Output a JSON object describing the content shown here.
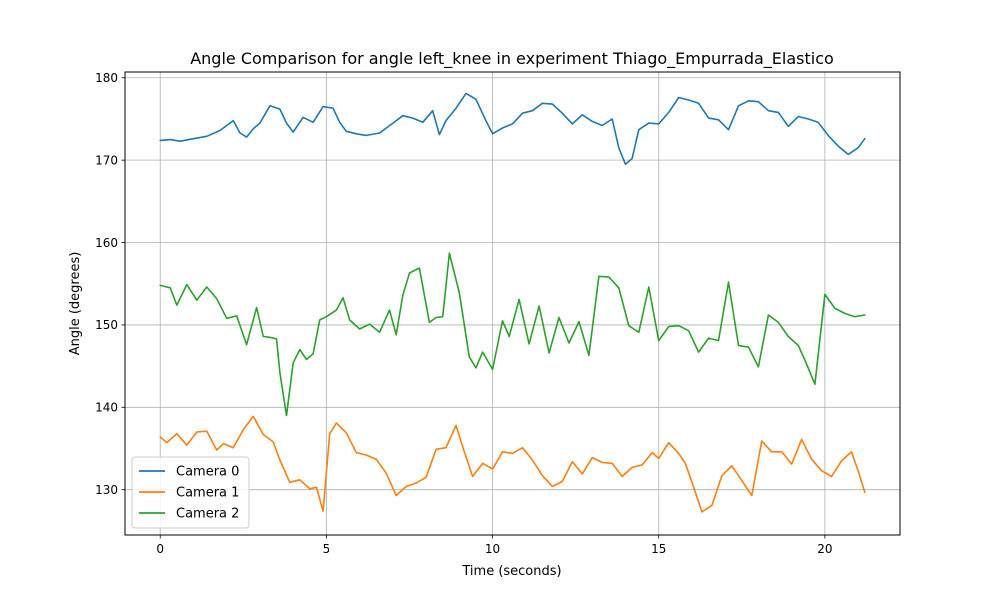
{
  "chart_data": {
    "type": "line",
    "title": "Angle Comparison for angle left_knee in experiment Thiago_Empurrada_Elastico",
    "xlabel": "Time (seconds)",
    "ylabel": "Angle (degrees)",
    "xlim": [
      -1.06,
      22.26
    ],
    "ylim": [
      124.5,
      180.7
    ],
    "xticks": [
      0,
      5,
      10,
      15,
      20
    ],
    "yticks": [
      130,
      140,
      150,
      160,
      170,
      180
    ],
    "xtick_labels": [
      "0",
      "5",
      "10",
      "15",
      "20"
    ],
    "ytick_labels": [
      "130",
      "140",
      "150",
      "160",
      "170",
      "180"
    ],
    "grid": true,
    "legend": "bottom-left",
    "series": [
      {
        "name": "Camera 0",
        "color": "#1f77b4",
        "x": [
          0,
          0.3,
          0.6,
          1.0,
          1.4,
          1.8,
          2.0,
          2.2,
          2.4,
          2.6,
          2.8,
          3.0,
          3.3,
          3.6,
          3.8,
          4.0,
          4.3,
          4.6,
          4.9,
          5.2,
          5.4,
          5.6,
          5.9,
          6.2,
          6.6,
          7.0,
          7.3,
          7.6,
          7.9,
          8.2,
          8.4,
          8.6,
          8.9,
          9.2,
          9.5,
          9.8,
          10.0,
          10.3,
          10.6,
          10.9,
          11.2,
          11.5,
          11.8,
          12.1,
          12.4,
          12.7,
          13.0,
          13.3,
          13.6,
          13.8,
          14.0,
          14.2,
          14.4,
          14.7,
          15.0,
          15.3,
          15.6,
          15.9,
          16.2,
          16.5,
          16.8,
          17.1,
          17.4,
          17.7,
          18.0,
          18.3,
          18.6,
          18.9,
          19.2,
          19.5,
          19.8,
          20.1,
          20.4,
          20.7,
          21.0,
          21.2
        ],
        "values": [
          172.4,
          172.5,
          172.3,
          172.6,
          172.9,
          173.6,
          174.2,
          174.8,
          173.3,
          172.8,
          173.8,
          174.5,
          176.6,
          176.2,
          174.5,
          173.4,
          175.2,
          174.6,
          176.5,
          176.3,
          174.6,
          173.5,
          173.2,
          173.0,
          173.3,
          174.5,
          175.4,
          175.1,
          174.6,
          176.0,
          173.1,
          174.8,
          176.3,
          178.1,
          177.4,
          174.8,
          173.2,
          173.9,
          174.4,
          175.7,
          176.0,
          176.9,
          176.8,
          175.7,
          174.4,
          175.5,
          174.7,
          174.2,
          175.0,
          171.5,
          169.5,
          170.2,
          173.7,
          174.5,
          174.4,
          175.8,
          177.6,
          177.3,
          176.9,
          175.1,
          174.9,
          173.7,
          176.6,
          177.2,
          177.1,
          176.0,
          175.8,
          174.1,
          175.3,
          175.0,
          174.6,
          173.0,
          171.7,
          170.7,
          171.5,
          172.6
        ]
      },
      {
        "name": "Camera 1",
        "color": "#ff7f0e",
        "x": [
          0,
          0.2,
          0.5,
          0.8,
          1.1,
          1.4,
          1.7,
          1.9,
          2.2,
          2.5,
          2.8,
          3.1,
          3.4,
          3.6,
          3.9,
          4.2,
          4.5,
          4.7,
          4.9,
          5.1,
          5.3,
          5.6,
          5.9,
          6.2,
          6.5,
          6.8,
          7.1,
          7.4,
          7.7,
          8.0,
          8.3,
          8.6,
          8.9,
          9.1,
          9.4,
          9.7,
          10.0,
          10.3,
          10.6,
          10.9,
          11.2,
          11.5,
          11.8,
          12.1,
          12.4,
          12.7,
          13.0,
          13.3,
          13.6,
          13.9,
          14.2,
          14.5,
          14.8,
          15.0,
          15.3,
          15.6,
          15.8,
          16.0,
          16.3,
          16.6,
          16.9,
          17.2,
          17.5,
          17.8,
          18.1,
          18.4,
          18.7,
          19.0,
          19.3,
          19.6,
          19.9,
          20.2,
          20.5,
          20.8,
          21.0,
          21.2
        ],
        "values": [
          136.4,
          135.7,
          136.8,
          135.4,
          137.0,
          137.1,
          134.8,
          135.6,
          135.1,
          137.3,
          138.9,
          136.7,
          135.8,
          133.6,
          130.9,
          131.2,
          130.1,
          130.3,
          127.4,
          136.8,
          138.1,
          136.9,
          134.5,
          134.2,
          133.7,
          132.0,
          129.3,
          130.4,
          130.8,
          131.5,
          134.9,
          135.1,
          137.8,
          135.2,
          131.6,
          133.2,
          132.5,
          134.6,
          134.4,
          135.1,
          133.6,
          131.7,
          130.4,
          131.0,
          133.4,
          131.9,
          133.9,
          133.3,
          133.2,
          131.6,
          132.7,
          133.0,
          134.5,
          133.8,
          135.7,
          134.4,
          133.2,
          130.9,
          127.3,
          128.1,
          131.7,
          132.9,
          131.1,
          129.3,
          135.9,
          134.6,
          134.6,
          133.1,
          136.1,
          133.7,
          132.3,
          131.6,
          133.5,
          134.6,
          132.3,
          129.7
        ]
      },
      {
        "name": "Camera 2",
        "color": "#2ca02c",
        "x": [
          0,
          0.3,
          0.5,
          0.8,
          1.1,
          1.4,
          1.7,
          2.0,
          2.3,
          2.6,
          2.9,
          3.1,
          3.3,
          3.5,
          3.6,
          3.8,
          4.0,
          4.2,
          4.4,
          4.6,
          4.8,
          5.0,
          5.3,
          5.5,
          5.7,
          6.0,
          6.3,
          6.6,
          6.9,
          7.1,
          7.3,
          7.5,
          7.8,
          8.1,
          8.3,
          8.5,
          8.7,
          9.0,
          9.3,
          9.5,
          9.7,
          10.0,
          10.3,
          10.5,
          10.8,
          11.1,
          11.4,
          11.7,
          12.0,
          12.3,
          12.6,
          12.9,
          13.2,
          13.5,
          13.8,
          14.1,
          14.4,
          14.7,
          15.0,
          15.3,
          15.6,
          15.9,
          16.2,
          16.5,
          16.8,
          17.1,
          17.4,
          17.7,
          18.0,
          18.3,
          18.6,
          18.9,
          19.2,
          19.4,
          19.7,
          20.0,
          20.3,
          20.6,
          20.9,
          21.2
        ],
        "values": [
          154.8,
          154.5,
          152.4,
          154.9,
          153.0,
          154.6,
          153.2,
          150.8,
          151.1,
          147.6,
          152.1,
          148.6,
          148.5,
          148.3,
          144.2,
          139.0,
          145.4,
          147.0,
          145.8,
          146.5,
          150.6,
          151.0,
          151.8,
          153.3,
          150.6,
          149.5,
          150.1,
          149.1,
          151.8,
          148.8,
          153.6,
          156.3,
          156.9,
          150.3,
          150.9,
          151.0,
          158.7,
          153.9,
          146.1,
          144.8,
          146.7,
          144.6,
          150.5,
          148.6,
          153.1,
          147.7,
          152.3,
          146.6,
          150.9,
          147.8,
          150.4,
          146.3,
          155.9,
          155.8,
          154.5,
          149.9,
          149.1,
          154.6,
          148.1,
          149.8,
          149.9,
          149.3,
          146.7,
          148.4,
          148.1,
          155.2,
          147.5,
          147.3,
          144.9,
          151.2,
          150.3,
          148.6,
          147.5,
          145.7,
          142.8,
          153.7,
          152.0,
          151.4,
          151.0,
          151.2
        ]
      }
    ]
  }
}
